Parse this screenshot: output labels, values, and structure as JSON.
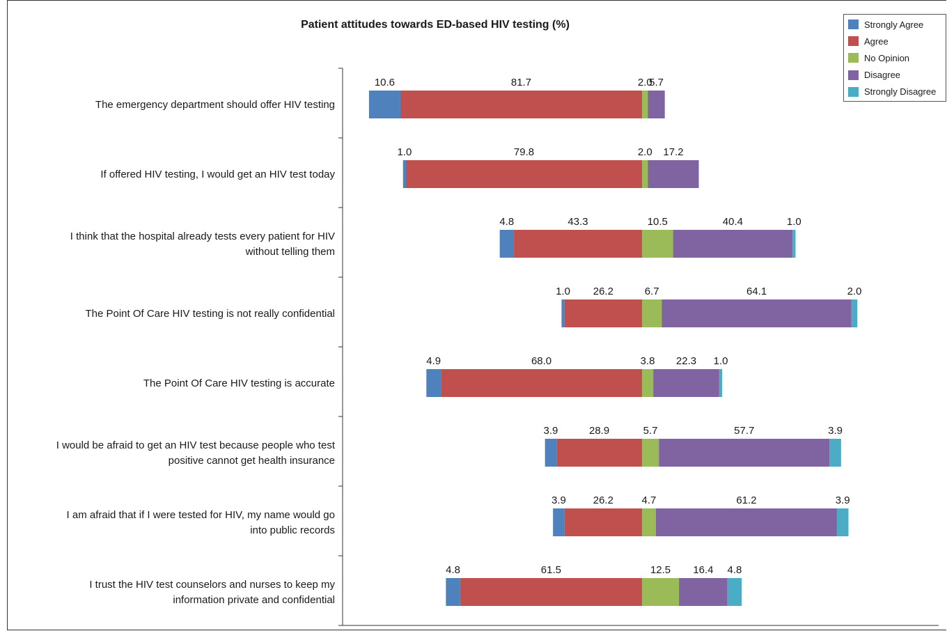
{
  "chart_data": {
    "type": "bar",
    "orientation": "horizontal",
    "stacked": true,
    "layout": "diverging",
    "title": "Patient attitudes towards ED-based HIV testing (%)",
    "xlabel": "",
    "ylabel": "",
    "grid": false,
    "legend_position": "top-right",
    "categories": [
      "The emergency department should offer HIV testing",
      "If offered HIV testing, I would get an HIV test today",
      "I think that the hospital already tests every patient for HIV without telling them",
      "The Point Of Care HIV testing is not really confidential",
      "The Point Of Care HIV testing is accurate",
      "I would be afraid to get an HIV test because people who test positive cannot get health insurance",
      "I am afraid that if I were tested for HIV, my name would go into public records",
      "I trust the HIV test counselors and nurses to keep my information private and confidential"
    ],
    "category_lines": [
      [
        "The emergency department should offer HIV testing"
      ],
      [
        "If offered HIV testing, I would get an HIV test today"
      ],
      [
        "I think that the hospital already tests every patient for HIV",
        "without telling them"
      ],
      [
        "The Point Of Care HIV testing is not really confidential"
      ],
      [
        "The Point Of Care HIV testing is accurate"
      ],
      [
        "I would be afraid to get an HIV test because people who test",
        "positive cannot get health insurance"
      ],
      [
        "I am afraid that if I were tested for HIV, my name would go",
        "into public records"
      ],
      [
        "I trust the HIV test counselors and nurses to keep my",
        "information private and confidential"
      ]
    ],
    "series": [
      {
        "name": "Strongly Agree",
        "color": "#4f81bd",
        "values": [
          10.6,
          1.0,
          4.8,
          1.0,
          4.9,
          3.9,
          3.9,
          4.8
        ],
        "labels": [
          "10.6",
          "1.0",
          "4.8",
          "1.0",
          "4.9",
          "3.9",
          "3.9",
          "4.8"
        ]
      },
      {
        "name": "Agree",
        "color": "#c0504d",
        "values": [
          81.7,
          79.8,
          43.3,
          26.2,
          68.0,
          28.9,
          26.2,
          61.5
        ],
        "labels": [
          "81.7",
          "79.8",
          "43.3",
          "26.2",
          "68.0",
          "28.9",
          "26.2",
          "61.5"
        ]
      },
      {
        "name": "No Opinion",
        "color": "#9bbb59",
        "values": [
          2.0,
          2.0,
          10.5,
          6.7,
          3.8,
          5.7,
          4.7,
          12.5
        ],
        "labels": [
          "2.0",
          "2.0",
          "10.5",
          "6.7",
          "3.8",
          "5.7",
          "4.7",
          "12.5"
        ]
      },
      {
        "name": "Disagree",
        "color": "#8064a2",
        "values": [
          5.7,
          17.2,
          40.4,
          64.1,
          22.3,
          57.7,
          61.2,
          16.4
        ],
        "labels": [
          "5.7",
          "17.2",
          "40.4",
          "64.1",
          "22.3",
          "57.7",
          "61.2",
          "16.4"
        ]
      },
      {
        "name": "Strongly Disagree",
        "color": "#4bacc6",
        "values": [
          0,
          0,
          1.0,
          2.0,
          1.0,
          3.9,
          3.9,
          4.8
        ],
        "labels": [
          "",
          "",
          "1.0",
          "2.0",
          "1.0",
          "3.9",
          "3.9",
          "4.8"
        ]
      }
    ]
  }
}
